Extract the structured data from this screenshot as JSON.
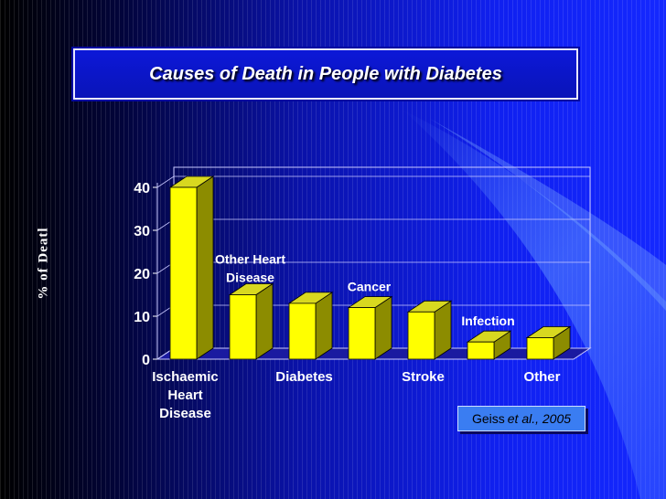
{
  "slide": {
    "title": "Causes of Death in People with Diabetes",
    "citation_author": "Geiss ",
    "citation_etal": "et al",
    "citation_year": "., 2005"
  },
  "chart_data": {
    "type": "bar",
    "ylabel": "% of Deatl",
    "xlabel": "",
    "ylim": [
      0,
      40
    ],
    "yticks": [
      "0",
      "10",
      "20",
      "30",
      "40"
    ],
    "grid": true,
    "bar_color": "#ffff00",
    "categories": [
      "Ischaemic Heart Disease",
      "Other Heart Disease",
      "Diabetes",
      "Cancer",
      "Stroke",
      "Infection",
      "Other"
    ],
    "values": [
      40,
      15,
      13,
      12,
      11,
      4,
      5
    ],
    "bottom_labels": [
      "Ischaemic\nHeart\nDisease",
      "",
      "Diabetes",
      "",
      "Stroke",
      "",
      "Other"
    ],
    "floating_labels": [
      "",
      "Other Heart\nDisease",
      "",
      "Cancer",
      "",
      "Infection",
      ""
    ]
  }
}
